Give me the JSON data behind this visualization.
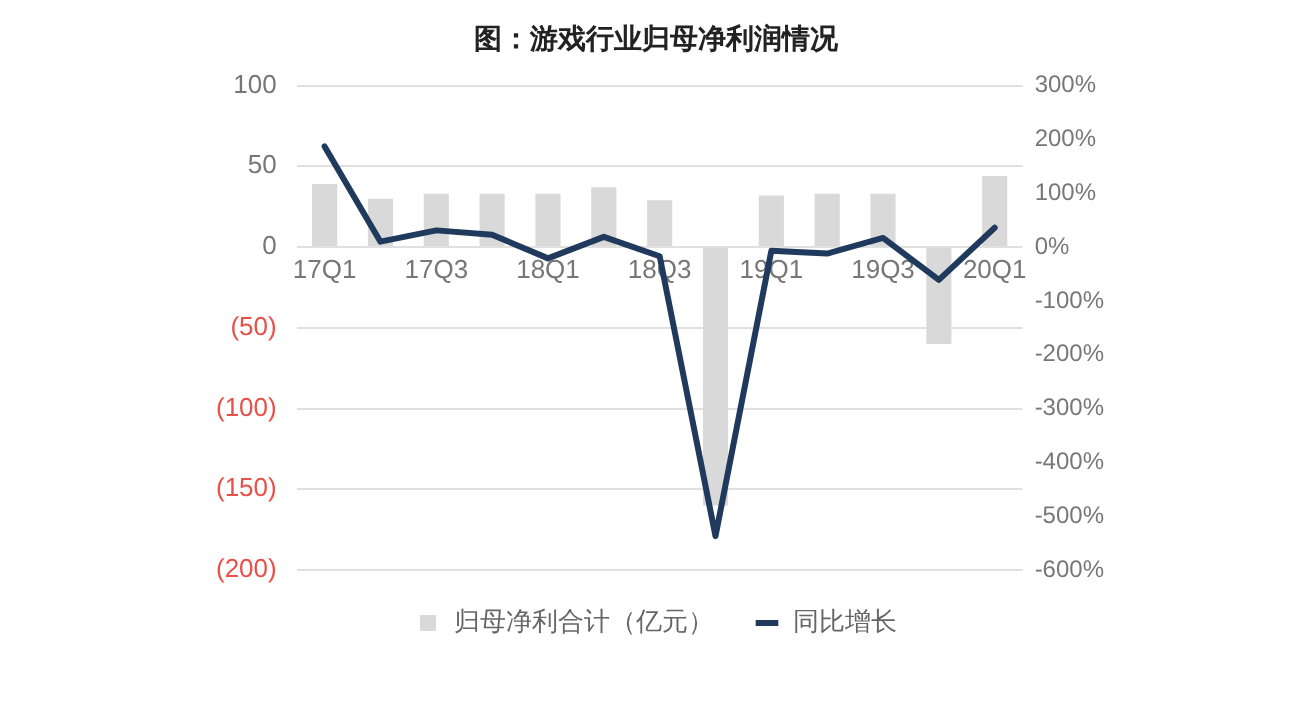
{
  "chart_data": {
    "type": "bar",
    "title": "图：游戏行业归母净利润情况",
    "categories": [
      "17Q1",
      null,
      "17Q3",
      null,
      "18Q1",
      null,
      "18Q3",
      null,
      "19Q1",
      null,
      "19Q3",
      null,
      "20Q1"
    ],
    "series": [
      {
        "name": "归母净利合计（亿元）",
        "color": "#d9d9d9",
        "values": [
          39,
          30,
          33,
          33,
          33,
          37,
          29,
          -160,
          32,
          33,
          33,
          -60,
          44
        ]
      },
      {
        "name": "同比增长",
        "type": "line",
        "axis": "y2",
        "color": "#1f3a5c",
        "values": [
          187,
          10,
          31,
          23,
          -21,
          19,
          -17,
          -537,
          -7,
          -12,
          17,
          -61,
          36
        ]
      }
    ],
    "ylim": [
      -200,
      100
    ],
    "yticks": [
      {
        "value": 100,
        "label": "100"
      },
      {
        "value": 50,
        "label": "50"
      },
      {
        "value": 0,
        "label": "0"
      },
      {
        "value": -50,
        "label": "(50)"
      },
      {
        "value": -100,
        "label": "(100)"
      },
      {
        "value": -150,
        "label": "(150)"
      },
      {
        "value": -200,
        "label": "(200)"
      }
    ],
    "y2lim": [
      -600,
      300
    ],
    "y2ticks": [
      {
        "value": 300,
        "label": "300%"
      },
      {
        "value": 200,
        "label": "200%"
      },
      {
        "value": 100,
        "label": "100%"
      },
      {
        "value": 0,
        "label": "0%"
      },
      {
        "value": -100,
        "label": "-100%"
      },
      {
        "value": -200,
        "label": "-200%"
      },
      {
        "value": -300,
        "label": "-300%"
      },
      {
        "value": -400,
        "label": "-400%"
      },
      {
        "value": -500,
        "label": "-500%"
      },
      {
        "value": -600,
        "label": "-600%"
      }
    ],
    "grid": "y",
    "legend": "bottom",
    "marker": "none"
  }
}
